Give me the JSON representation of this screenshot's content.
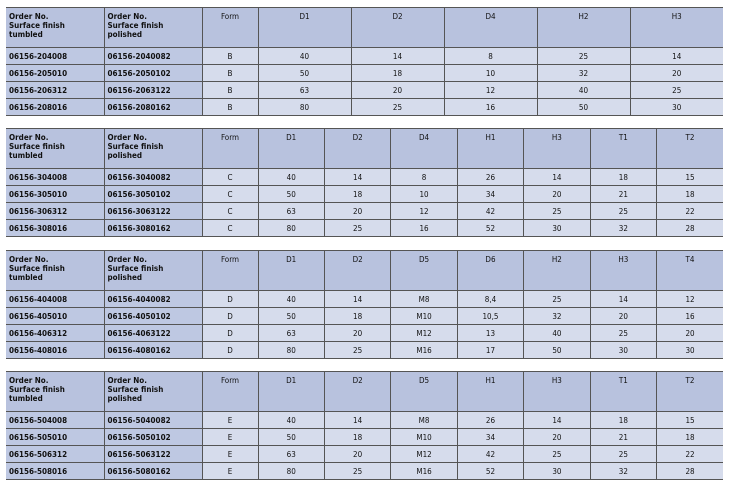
{
  "order_header_tumbled": [
    "Order No.",
    "Surface finish",
    "tumbled"
  ],
  "order_header_polished": [
    "Order No.",
    "Surface finish",
    "polished"
  ],
  "tables": [
    {
      "columns": [
        "Form",
        "D1",
        "D2",
        "D4",
        "H2",
        "H3"
      ],
      "rows": [
        [
          "06156-204008",
          "06156-2040082",
          "B",
          "40",
          "14",
          "8",
          "25",
          "14"
        ],
        [
          "06156-205010",
          "06156-2050102",
          "B",
          "50",
          "18",
          "10",
          "32",
          "20"
        ],
        [
          "06156-206312",
          "06156-2063122",
          "B",
          "63",
          "20",
          "12",
          "40",
          "25"
        ],
        [
          "06156-208016",
          "06156-2080162",
          "B",
          "80",
          "25",
          "16",
          "50",
          "30"
        ]
      ]
    },
    {
      "columns": [
        "Form",
        "D1",
        "D2",
        "D4",
        "H1",
        "H3",
        "T1",
        "T2"
      ],
      "rows": [
        [
          "06156-304008",
          "06156-3040082",
          "C",
          "40",
          "14",
          "8",
          "26",
          "14",
          "18",
          "15"
        ],
        [
          "06156-305010",
          "06156-3050102",
          "C",
          "50",
          "18",
          "10",
          "34",
          "20",
          "21",
          "18"
        ],
        [
          "06156-306312",
          "06156-3063122",
          "C",
          "63",
          "20",
          "12",
          "42",
          "25",
          "25",
          "22"
        ],
        [
          "06156-308016",
          "06156-3080162",
          "C",
          "80",
          "25",
          "16",
          "52",
          "30",
          "32",
          "28"
        ]
      ]
    },
    {
      "columns": [
        "Form",
        "D1",
        "D2",
        "D5",
        "D6",
        "H2",
        "H3",
        "T4"
      ],
      "rows": [
        [
          "06156-404008",
          "06156-4040082",
          "D",
          "40",
          "14",
          "M8",
          "8,4",
          "25",
          "14",
          "12"
        ],
        [
          "06156-405010",
          "06156-4050102",
          "D",
          "50",
          "18",
          "M10",
          "10,5",
          "32",
          "20",
          "16"
        ],
        [
          "06156-406312",
          "06156-4063122",
          "D",
          "63",
          "20",
          "M12",
          "13",
          "40",
          "25",
          "20"
        ],
        [
          "06156-408016",
          "06156-4080162",
          "D",
          "80",
          "25",
          "M16",
          "17",
          "50",
          "30",
          "30"
        ]
      ]
    },
    {
      "columns": [
        "Form",
        "D1",
        "D2",
        "D5",
        "H1",
        "H3",
        "T1",
        "T2"
      ],
      "rows": [
        [
          "06156-504008",
          "06156-5040082",
          "E",
          "40",
          "14",
          "M8",
          "26",
          "14",
          "18",
          "15"
        ],
        [
          "06156-505010",
          "06156-5050102",
          "E",
          "50",
          "18",
          "M10",
          "34",
          "20",
          "21",
          "18"
        ],
        [
          "06156-506312",
          "06156-5063122",
          "E",
          "63",
          "20",
          "M12",
          "42",
          "25",
          "25",
          "22"
        ],
        [
          "06156-508016",
          "06156-5080162",
          "E",
          "80",
          "25",
          "M16",
          "52",
          "30",
          "32",
          "28"
        ]
      ]
    }
  ]
}
